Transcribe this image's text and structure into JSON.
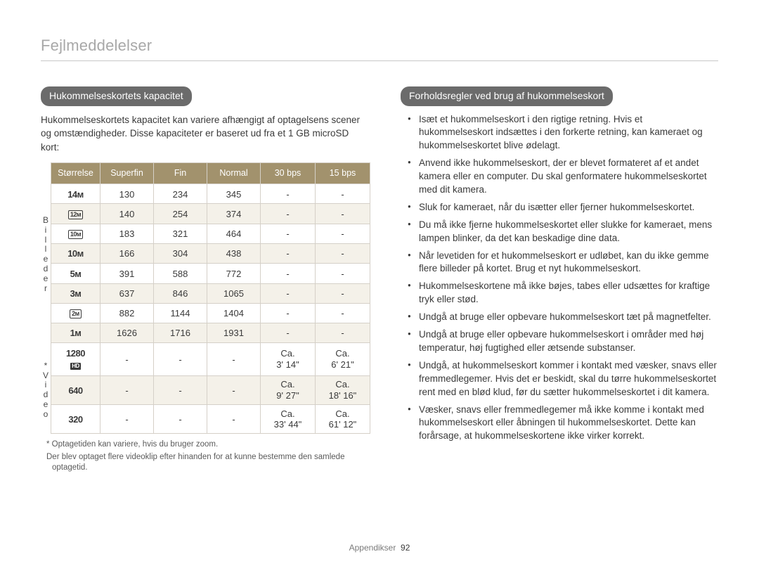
{
  "header": "Fejlmeddelelser",
  "footer": {
    "section": "Appendikser",
    "page": "92"
  },
  "left": {
    "pill": "Hukommelseskortets kapacitet",
    "intro": "Hukommelseskortets kapacitet kan variere afhængigt af optagelsens scener og omstændigheder. Disse kapaciteter er baseret ud fra et 1 GB microSD kort:",
    "columns": [
      "Størrelse",
      "Superfin",
      "Fin",
      "Normal",
      "30 bps",
      "15 bps"
    ],
    "vlabel_photos": "Billeder",
    "vlabel_video": "* Video",
    "rows_photos": [
      {
        "size_html": "14ᴍ",
        "stripe": "odd",
        "cells": [
          "130",
          "234",
          "345",
          "-",
          "-"
        ]
      },
      {
        "size_html": "⬚12ᴍ",
        "stripe": "even",
        "cells": [
          "140",
          "254",
          "374",
          "-",
          "-"
        ],
        "boxed": true,
        "boxtext": "12ᴍ"
      },
      {
        "size_html": "10ᴍ",
        "stripe": "odd",
        "cells": [
          "183",
          "321",
          "464",
          "-",
          "-"
        ],
        "boxed": true,
        "boxtext": "10ᴍ"
      },
      {
        "size_html": "10ᴍ",
        "stripe": "even",
        "cells": [
          "166",
          "304",
          "438",
          "-",
          "-"
        ]
      },
      {
        "size_html": "5ᴍ",
        "stripe": "odd",
        "cells": [
          "391",
          "588",
          "772",
          "-",
          "-"
        ]
      },
      {
        "size_html": "3ᴍ",
        "stripe": "even",
        "cells": [
          "637",
          "846",
          "1065",
          "-",
          "-"
        ]
      },
      {
        "size_html": "2ᴍ",
        "stripe": "odd",
        "cells": [
          "882",
          "1144",
          "1404",
          "-",
          "-"
        ],
        "boxed": true,
        "boxtext": "2ᴍ"
      },
      {
        "size_html": "1ᴍ",
        "stripe": "even",
        "cells": [
          "1626",
          "1716",
          "1931",
          "-",
          "-"
        ]
      }
    ],
    "rows_video": [
      {
        "size_html": "1280",
        "sub": "HD",
        "stripe": "odd",
        "cells": [
          "-",
          "-",
          "-",
          "Ca.\n3' 14\"",
          "Ca.\n6' 21\""
        ]
      },
      {
        "size_html": "640",
        "stripe": "even",
        "cells": [
          "-",
          "-",
          "-",
          "Ca.\n9' 27\"",
          "Ca.\n18' 16\""
        ]
      },
      {
        "size_html": "320",
        "stripe": "odd",
        "cells": [
          "-",
          "-",
          "-",
          "Ca.\n33' 44\"",
          "Ca.\n61' 12\""
        ]
      }
    ],
    "footnotes": [
      "* Optagetiden kan variere, hvis du bruger zoom.",
      "Der blev optaget flere videoklip efter hinanden for at kunne bestemme den samlede optagetid."
    ]
  },
  "right": {
    "pill": "Forholdsregler ved brug af hukommelseskort",
    "bullets": [
      "Isæt et hukommelseskort i den rigtige retning. Hvis et hukommelseskort indsættes i den forkerte retning, kan kameraet og hukommelseskortet blive ødelagt.",
      "Anvend ikke hukommelseskort, der er blevet formateret af et andet kamera eller en computer. Du skal genformatere hukommelseskortet med dit kamera.",
      "Sluk for kameraet, når du isætter eller fjerner hukommelseskortet.",
      "Du må ikke fjerne hukommelseskortet eller slukke for kameraet, mens lampen blinker, da det kan beskadige dine data.",
      "Når levetiden for et hukommelseskort er udløbet, kan du ikke gemme flere billeder på kortet. Brug et nyt hukommelseskort.",
      "Hukommelseskortene må ikke bøjes, tabes eller udsættes for kraftige tryk eller stød.",
      "Undgå at bruge eller opbevare hukommelseskort tæt på magnetfelter.",
      "Undgå at bruge eller opbevare hukommelseskort i områder med høj temperatur, høj fugtighed eller ætsende substanser.",
      "Undgå, at hukommelseskort kommer i kontakt med væsker, snavs eller fremmedlegemer. Hvis det er beskidt, skal du tørre hukommelseskortet rent med en blød klud, før du sætter hukommelseskortet i dit kamera.",
      "Væsker, snavs eller fremmedlegemer må ikke komme i kontakt med hukommelseskort eller åbningen til hukommelseskortet. Dette kan forårsage, at hukommelseskortene ikke virker korrekt."
    ]
  },
  "style": {
    "header_rule_color": "#c8c8c8",
    "pill_bg": "#6b6b6b",
    "table_header_bg": "#a2926d",
    "stripe_even_bg": "#f4f1e9",
    "border_color": "#d5d0c8",
    "text_color": "#3a3a3a"
  }
}
